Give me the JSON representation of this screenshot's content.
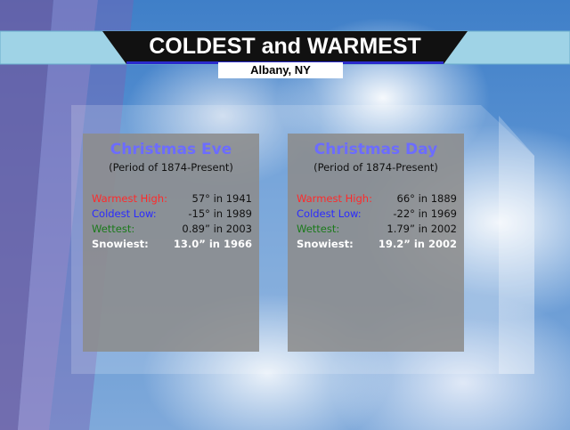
{
  "header": {
    "title": "COLDEST and WARMEST",
    "subtitle": "Albany, NY"
  },
  "panels": [
    {
      "title": "Christmas Eve",
      "period": "(Period of 1874-Present)",
      "rows": [
        [
          "Warmest High:",
          "57° in 1941"
        ],
        [
          "Coldest Low:",
          "-15° in 1989"
        ],
        [
          "Wettest:",
          "0.89” in 2003"
        ],
        [
          "Snowiest:",
          "13.0” in 1966"
        ]
      ]
    },
    {
      "title": "Christmas Day",
      "period": "(Period of 1874-Present)",
      "rows": [
        [
          "Warmest High:",
          "66° in 1889"
        ],
        [
          "Coldest Low:",
          "-22° in 1969"
        ],
        [
          "Wettest:",
          "1.79” in 2002"
        ],
        [
          "Snowiest:",
          "19.2” in 2002"
        ]
      ]
    }
  ]
}
